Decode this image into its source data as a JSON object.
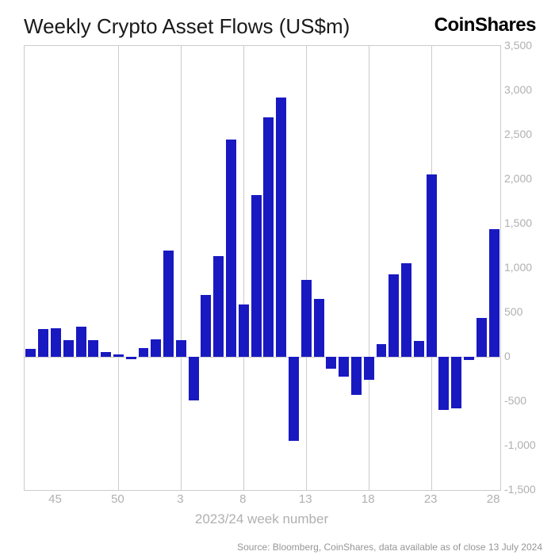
{
  "title": "Weekly Crypto Asset Flows (US$m)",
  "logo": "CoinShares",
  "source": "Source: Bloomberg, CoinShares, data available as of close 13 July 2024",
  "chart": {
    "type": "bar",
    "x_axis_title": "2023/24 week number",
    "bar_color": "#1919c1",
    "background_color": "#ffffff",
    "grid_color": "#cccccc",
    "label_color": "#b0b0b0",
    "title_fontsize": 26,
    "label_fontsize": 14,
    "ylim": [
      -1500,
      3500
    ],
    "ytick_step": 500,
    "yticks": [
      -1500,
      -1000,
      -500,
      0,
      500,
      1000,
      1500,
      2000,
      2500,
      3000,
      3500
    ],
    "xticks_major_weeks": [
      45,
      50,
      3,
      8,
      13,
      18,
      23,
      28
    ],
    "bar_gap_ratio": 0.18,
    "data": [
      {
        "week": 43,
        "value": 90
      },
      {
        "week": 44,
        "value": 310
      },
      {
        "week": 45,
        "value": 320
      },
      {
        "week": 46,
        "value": 190
      },
      {
        "week": 47,
        "value": 340
      },
      {
        "week": 48,
        "value": 190
      },
      {
        "week": 49,
        "value": 50
      },
      {
        "week": 50,
        "value": 30
      },
      {
        "week": 51,
        "value": -30
      },
      {
        "week": 52,
        "value": 100
      },
      {
        "week": 1,
        "value": 200
      },
      {
        "week": 2,
        "value": 1200
      },
      {
        "week": 3,
        "value": 190
      },
      {
        "week": 4,
        "value": -490
      },
      {
        "week": 5,
        "value": 700
      },
      {
        "week": 6,
        "value": 1130
      },
      {
        "week": 7,
        "value": 2450
      },
      {
        "week": 8,
        "value": 590
      },
      {
        "week": 9,
        "value": 1820
      },
      {
        "week": 10,
        "value": 2700
      },
      {
        "week": 11,
        "value": 2920
      },
      {
        "week": 12,
        "value": -950
      },
      {
        "week": 13,
        "value": 870
      },
      {
        "week": 14,
        "value": 650
      },
      {
        "week": 15,
        "value": -130
      },
      {
        "week": 16,
        "value": -220
      },
      {
        "week": 17,
        "value": -430
      },
      {
        "week": 18,
        "value": -260
      },
      {
        "week": 19,
        "value": 140
      },
      {
        "week": 20,
        "value": 930
      },
      {
        "week": 21,
        "value": 1050
      },
      {
        "week": 22,
        "value": 180
      },
      {
        "week": 23,
        "value": 2050
      },
      {
        "week": 24,
        "value": -600
      },
      {
        "week": 25,
        "value": -580
      },
      {
        "week": 26,
        "value": -40
      },
      {
        "week": 27,
        "value": 440
      },
      {
        "week": 28,
        "value": 1440
      }
    ]
  }
}
